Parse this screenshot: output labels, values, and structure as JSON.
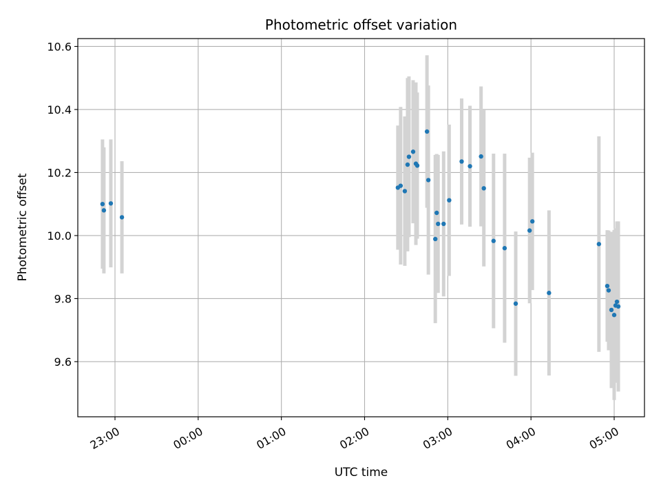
{
  "chart_data": {
    "type": "scatter",
    "title": "Photometric offset variation",
    "xlabel": "UTC time",
    "ylabel": "Photometric offset",
    "x_tick_labels": [
      "23:00",
      "00:00",
      "01:00",
      "02:00",
      "03:00",
      "04:00",
      "05:00"
    ],
    "y_tick_labels": [
      "9.6",
      "9.8",
      "10.0",
      "10.2",
      "10.4",
      "10.6"
    ],
    "ylim": [
      9.425,
      10.625
    ],
    "grid": true,
    "colors": {
      "marker": "#1f77b4",
      "errorbar": "#d3d3d3",
      "grid": "#b0b0b0"
    },
    "points": [
      {
        "t": "22:51",
        "y": 10.1,
        "err": 0.205
      },
      {
        "t": "22:52",
        "y": 10.08,
        "err": 0.2
      },
      {
        "t": "22:57",
        "y": 10.102,
        "err": 0.203
      },
      {
        "t": "23:05",
        "y": 10.058,
        "err": 0.178
      },
      {
        "t": "02:24",
        "y": 10.152,
        "err": 0.197
      },
      {
        "t": "02:26",
        "y": 10.158,
        "err": 0.25
      },
      {
        "t": "02:29",
        "y": 10.141,
        "err": 0.237
      },
      {
        "t": "02:31",
        "y": 10.225,
        "err": 0.275
      },
      {
        "t": "02:32",
        "y": 10.25,
        "err": 0.255
      },
      {
        "t": "02:35",
        "y": 10.266,
        "err": 0.227
      },
      {
        "t": "02:37",
        "y": 10.228,
        "err": 0.258
      },
      {
        "t": "02:38",
        "y": 10.222,
        "err": 0.232
      },
      {
        "t": "02:45",
        "y": 10.33,
        "err": 0.242
      },
      {
        "t": "02:46",
        "y": 10.176,
        "err": 0.3
      },
      {
        "t": "02:51",
        "y": 9.989,
        "err": 0.267
      },
      {
        "t": "02:52",
        "y": 10.072,
        "err": 0.187
      },
      {
        "t": "02:53",
        "y": 10.037,
        "err": 0.219
      },
      {
        "t": "02:57",
        "y": 10.037,
        "err": 0.23
      },
      {
        "t": "03:01",
        "y": 10.112,
        "err": 0.24
      },
      {
        "t": "03:10",
        "y": 10.235,
        "err": 0.2
      },
      {
        "t": "03:16",
        "y": 10.22,
        "err": 0.192
      },
      {
        "t": "03:24",
        "y": 10.251,
        "err": 0.222
      },
      {
        "t": "03:26",
        "y": 10.15,
        "err": 0.248
      },
      {
        "t": "03:33",
        "y": 9.983,
        "err": 0.277
      },
      {
        "t": "03:41",
        "y": 9.96,
        "err": 0.3
      },
      {
        "t": "03:49",
        "y": 9.784,
        "err": 0.229
      },
      {
        "t": "03:59",
        "y": 10.016,
        "err": 0.231
      },
      {
        "t": "04:01",
        "y": 10.045,
        "err": 0.218
      },
      {
        "t": "04:13",
        "y": 9.818,
        "err": 0.262
      },
      {
        "t": "04:49",
        "y": 9.973,
        "err": 0.342
      },
      {
        "t": "04:55",
        "y": 9.84,
        "err": 0.177
      },
      {
        "t": "04:56",
        "y": 9.826,
        "err": 0.19
      },
      {
        "t": "04:58",
        "y": 9.764,
        "err": 0.248
      },
      {
        "t": "05:00",
        "y": 9.748,
        "err": 0.27
      },
      {
        "t": "05:01",
        "y": 9.778,
        "err": 0.245
      },
      {
        "t": "05:02",
        "y": 9.79,
        "err": 0.255
      },
      {
        "t": "05:03",
        "y": 9.775,
        "err": 0.27
      }
    ]
  }
}
